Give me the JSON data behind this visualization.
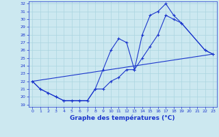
{
  "title": "Graphe des températures (°C)",
  "bg_color": "#cce8f0",
  "grid_color": "#aad4e0",
  "line_color": "#1a35cc",
  "xlim": [
    -0.5,
    23.5
  ],
  "ymin": 19,
  "ymax": 32,
  "xticks": [
    0,
    1,
    2,
    3,
    4,
    5,
    6,
    7,
    8,
    9,
    10,
    11,
    12,
    13,
    14,
    15,
    16,
    17,
    18,
    19,
    20,
    21,
    22,
    23
  ],
  "yticks": [
    19,
    20,
    21,
    22,
    23,
    24,
    25,
    26,
    27,
    28,
    29,
    30,
    31,
    32
  ],
  "line1_x": [
    0,
    1,
    2,
    3,
    4,
    5,
    6,
    7,
    8,
    9,
    10,
    11,
    12,
    13,
    14,
    15,
    16,
    17,
    18,
    19,
    22,
    23
  ],
  "line1_y": [
    22.0,
    21.0,
    20.5,
    20.0,
    19.5,
    19.5,
    19.5,
    19.5,
    21.0,
    23.5,
    26.0,
    27.5,
    27.0,
    23.5,
    28.0,
    30.5,
    31.0,
    32.0,
    30.5,
    29.5,
    26.0,
    25.5
  ],
  "line2_x": [
    0,
    1,
    2,
    3,
    4,
    5,
    6,
    7,
    8,
    9,
    10,
    11,
    12,
    13,
    14,
    15,
    16,
    17,
    18,
    19,
    22,
    23
  ],
  "line2_y": [
    22.0,
    21.0,
    20.5,
    20.0,
    19.5,
    19.5,
    19.5,
    19.5,
    21.0,
    21.0,
    22.0,
    22.5,
    23.5,
    23.5,
    25.0,
    26.5,
    28.0,
    30.5,
    30.0,
    29.5,
    26.0,
    25.5
  ],
  "line3_x": [
    0,
    23
  ],
  "line3_y": [
    22.0,
    25.5
  ]
}
